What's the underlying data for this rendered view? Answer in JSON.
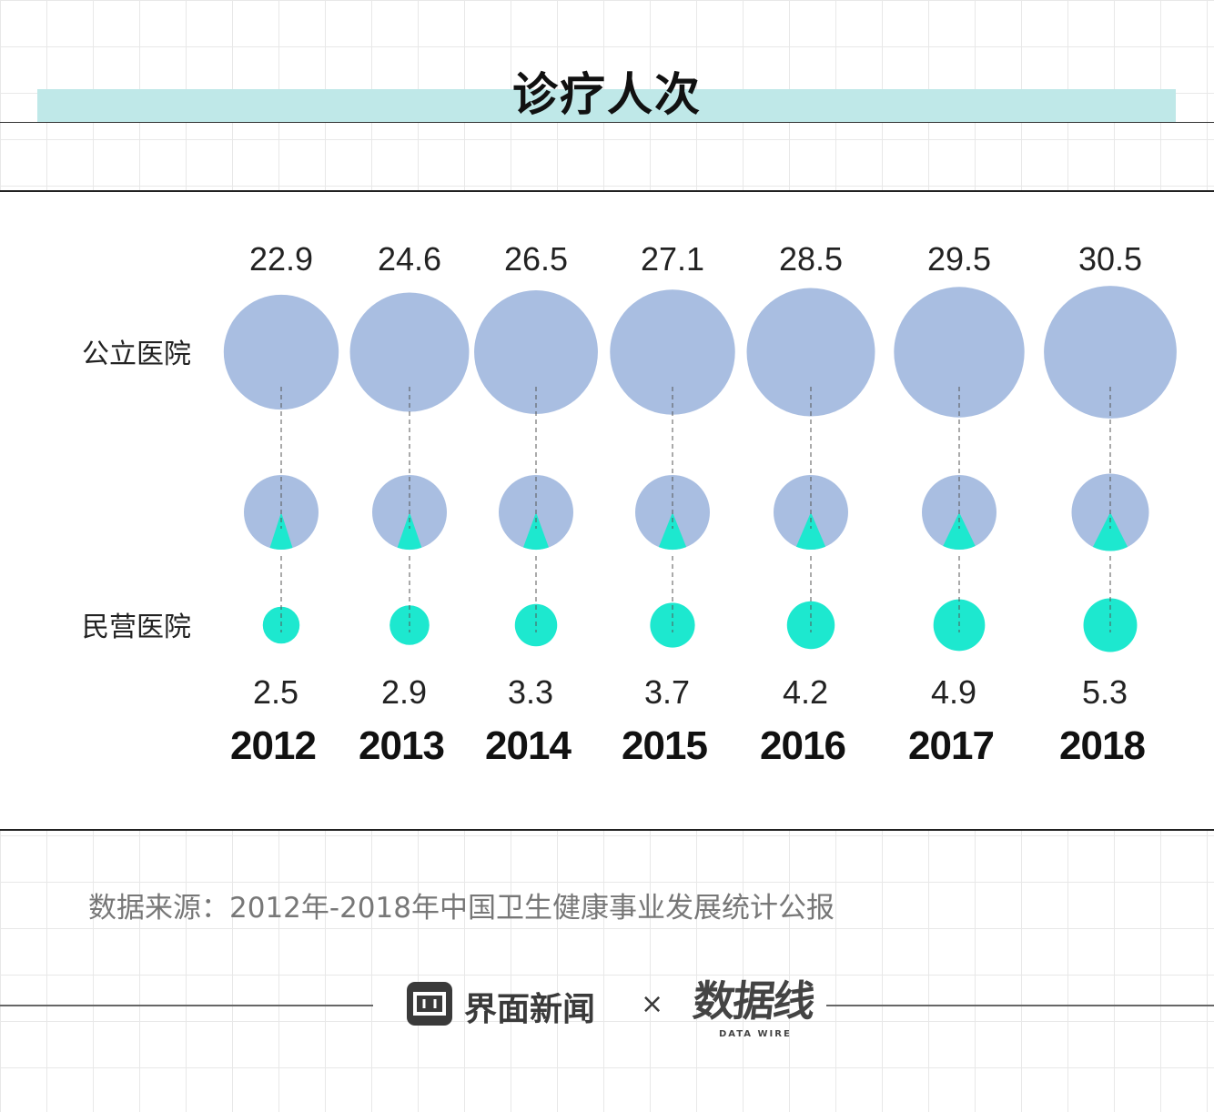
{
  "title": "诊疗人次",
  "source": "数据来源：2012年-2018年中国卫生健康事业发展统计公报",
  "brand": {
    "name": "界面新闻",
    "separator": "×",
    "partner_name": "数据线",
    "partner_sub": "DATA WIRE",
    "logo_icon": "jiemian-logo-icon"
  },
  "colors": {
    "public": "#a9bee1",
    "private": "#1de8cf",
    "title_band": "#bfe8e8",
    "text": "#111111"
  },
  "chart_data": {
    "type": "bubble",
    "title": "诊疗人次",
    "categories": [
      "2012",
      "2013",
      "2014",
      "2015",
      "2016",
      "2017",
      "2018"
    ],
    "series": [
      {
        "name": "公立医院",
        "values": [
          22.9,
          24.6,
          26.5,
          27.1,
          28.5,
          29.5,
          30.5
        ]
      },
      {
        "name": "民营医院",
        "values": [
          2.5,
          2.9,
          3.3,
          3.7,
          4.2,
          4.9,
          5.3
        ]
      }
    ],
    "share_glyph": "pie-slice-icon",
    "legend_placement": "left"
  }
}
